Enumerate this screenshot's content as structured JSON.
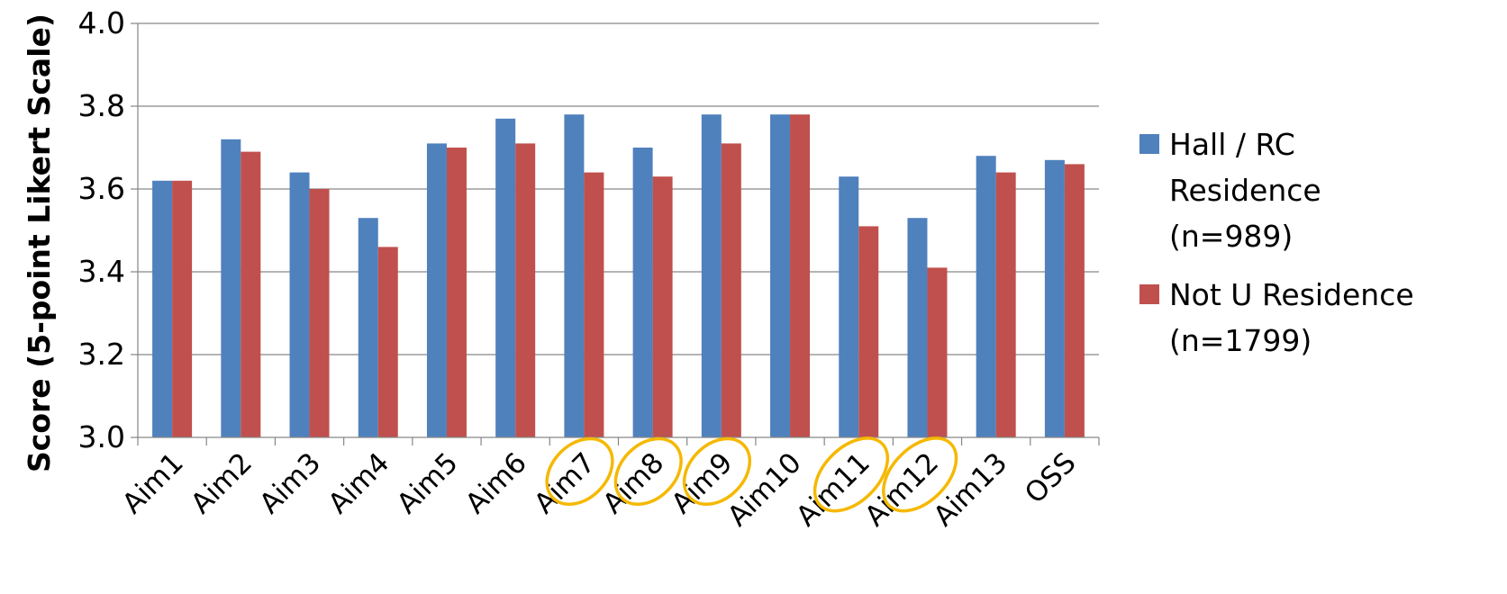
{
  "chart_data": {
    "type": "bar",
    "title": "",
    "xlabel": "",
    "ylabel": "Score (5-point Likert Scale)",
    "ylim": [
      3.0,
      4.0
    ],
    "yticks": [
      "3.0",
      "3.2",
      "3.4",
      "3.6",
      "3.8",
      "4.0"
    ],
    "grid": true,
    "legend_position": "right",
    "categories": [
      "Aim1",
      "Aim2",
      "Aim3",
      "Aim4",
      "Aim5",
      "Aim6",
      "Aim7",
      "Aim8",
      "Aim9",
      "Aim10",
      "Aim11",
      "Aim12",
      "Aim13",
      "OSS"
    ],
    "highlighted_categories": [
      "Aim7",
      "Aim8",
      "Aim9",
      "Aim11",
      "Aim12"
    ],
    "highlight_color": "#F5B800",
    "series": [
      {
        "name_lines": [
          "Hall / RC",
          "Residence",
          "(n=989)"
        ],
        "color": "#4F81BD",
        "values": [
          3.62,
          3.72,
          3.64,
          3.53,
          3.71,
          3.77,
          3.78,
          3.7,
          3.78,
          3.78,
          3.63,
          3.53,
          3.68,
          3.67
        ]
      },
      {
        "name_lines": [
          "Not U Residence",
          "(n=1799)"
        ],
        "color": "#C0504D",
        "values": [
          3.62,
          3.69,
          3.6,
          3.46,
          3.7,
          3.71,
          3.64,
          3.63,
          3.71,
          3.78,
          3.51,
          3.41,
          3.64,
          3.66
        ]
      }
    ]
  }
}
